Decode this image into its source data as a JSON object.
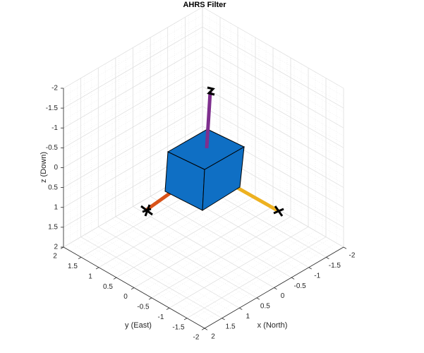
{
  "chart_data": {
    "type": "3d-pose",
    "title": "AHRS Filter",
    "xlabel": "x (North)",
    "ylabel": "y (East)",
    "zlabel": "z (Down)",
    "xlim": [
      -2,
      2
    ],
    "ylim": [
      -2,
      2
    ],
    "zlim": [
      -2,
      2
    ],
    "xticks": [
      -2,
      -1.5,
      -1,
      -0.5,
      0,
      0.5,
      1,
      1.5,
      2
    ],
    "yticks": [
      -2,
      -1.5,
      -1,
      -0.5,
      0,
      0.5,
      1,
      1.5,
      2
    ],
    "zticks": [
      -2,
      -1.5,
      -1,
      -0.5,
      0,
      0.5,
      1,
      1.5,
      2
    ],
    "grid": true,
    "minor_grid": true
  }
}
